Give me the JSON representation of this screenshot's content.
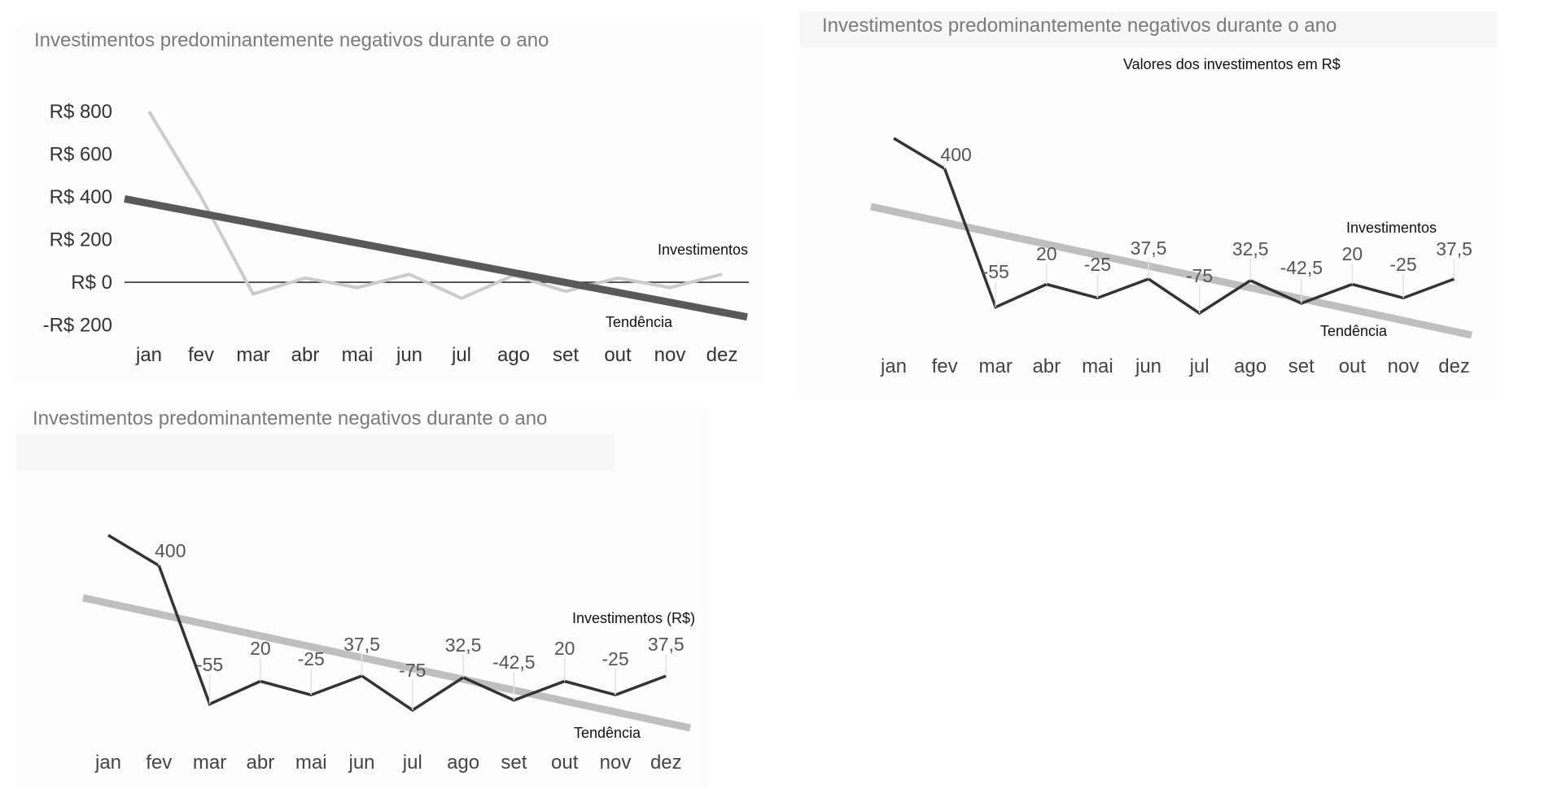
{
  "chart_data": [
    {
      "type": "line",
      "title": "Investimentos predominantemente negativos durante o ano",
      "categories": [
        "jan",
        "fev",
        "mar",
        "abr",
        "mai",
        "jun",
        "jul",
        "ago",
        "set",
        "out",
        "nov",
        "dez"
      ],
      "y_tick_labels": [
        "R$ 800",
        "R$ 600",
        "R$ 400",
        "R$ 200",
        "R$ 0",
        "-R$ 200"
      ],
      "y_ticks": [
        800,
        600,
        400,
        200,
        0,
        -200
      ],
      "ylim": [
        -200,
        800
      ],
      "grid": false,
      "series": [
        {
          "name": "Investimentos",
          "values": [
            800,
            400,
            -55,
            20,
            -25,
            37.5,
            -75,
            32.5,
            -42.5,
            20,
            -25,
            37.5
          ],
          "color": "#cccccc"
        },
        {
          "name": "Tendência",
          "values": [
            345,
            299,
            253,
            207,
            161,
            115,
            69,
            23,
            -23,
            -69,
            -115,
            -155
          ],
          "color": "#595959"
        }
      ]
    },
    {
      "type": "line",
      "title": "Investimentos predominantemente negativos durante o ano",
      "subtitle": "Valores dos investimentos em R$",
      "categories": [
        "jan",
        "fev",
        "mar",
        "abr",
        "mai",
        "jun",
        "jul",
        "ago",
        "set",
        "out",
        "nov",
        "dez"
      ],
      "data_labels": [
        "",
        "400",
        "-55",
        "20",
        "-25",
        "37,5",
        "-75",
        "32,5",
        "-42,5",
        "20",
        "-25",
        "37,5"
      ],
      "grid": false,
      "series": [
        {
          "name": "Investimentos",
          "values": [
            800,
            400,
            -55,
            20,
            -25,
            37.5,
            -75,
            32.5,
            -42.5,
            20,
            -25,
            37.5
          ],
          "color": "#333333"
        },
        {
          "name": "Tendência",
          "values": [
            345,
            299,
            253,
            207,
            161,
            115,
            69,
            23,
            -23,
            -69,
            -115,
            -155
          ],
          "color": "#bfbfbf"
        }
      ]
    },
    {
      "type": "line",
      "title": "Investimentos predominantemente negativos durante o ano",
      "categories": [
        "jan",
        "fev",
        "mar",
        "abr",
        "mai",
        "jun",
        "jul",
        "ago",
        "set",
        "out",
        "nov",
        "dez"
      ],
      "data_labels": [
        "",
        "400",
        "-55",
        "20",
        "-25",
        "37,5",
        "-75",
        "32,5",
        "-42,5",
        "20",
        "-25",
        "37,5"
      ],
      "grid": false,
      "series": [
        {
          "name": "Investimentos (R$)",
          "values": [
            800,
            400,
            -55,
            20,
            -25,
            37.5,
            -75,
            32.5,
            -42.5,
            20,
            -25,
            37.5
          ],
          "color": "#333333"
        },
        {
          "name": "Tendência",
          "values": [
            345,
            299,
            253,
            207,
            161,
            115,
            69,
            23,
            -23,
            -69,
            -115,
            -155
          ],
          "color": "#bfbfbf"
        }
      ]
    }
  ]
}
